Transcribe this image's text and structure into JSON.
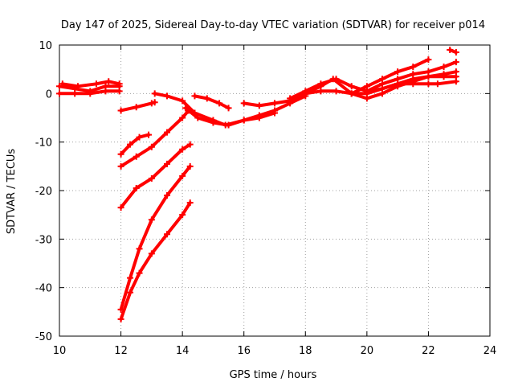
{
  "chart_data": {
    "type": "scatter",
    "title": "Day 147 of 2025, Sidereal Day-to-day VTEC variation (SDTVAR) for receiver p014",
    "xlabel": "GPS time / hours",
    "ylabel": "SDTVAR / TECUs",
    "xlim": [
      10,
      24
    ],
    "ylim": [
      -50,
      10
    ],
    "xticks": [
      10,
      12,
      14,
      16,
      18,
      20,
      22,
      24
    ],
    "yticks": [
      -50,
      -40,
      -30,
      -20,
      -10,
      0,
      10
    ],
    "xtick_labels": [
      "10",
      "12",
      "14",
      "16",
      "18",
      "20",
      "22",
      "24"
    ],
    "ytick_labels": [
      "-50",
      "-40",
      "-30",
      "-20",
      "-10",
      "0",
      "10"
    ],
    "grid": true,
    "legend": "none",
    "marker": "plus",
    "color": "#ff0000",
    "series": [
      {
        "x": [
          10.0,
          10.5,
          11.0,
          11.5,
          11.95
        ],
        "y": [
          1.5,
          1.0,
          0.5,
          1.5,
          1.5
        ]
      },
      {
        "x": [
          10.0,
          10.5,
          11.0,
          11.5,
          11.95
        ],
        "y": [
          0.0,
          0.0,
          0.0,
          0.5,
          0.5
        ]
      },
      {
        "x": [
          10.1,
          10.6,
          11.2,
          11.6,
          11.95
        ],
        "y": [
          2.0,
          1.5,
          2.0,
          2.5,
          2.0
        ]
      },
      {
        "x": [
          12.0,
          12.5,
          13.0,
          13.1
        ],
        "y": [
          -3.5,
          -2.8,
          -2.0,
          -1.8
        ]
      },
      {
        "x": [
          12.0,
          12.3,
          12.6,
          12.9
        ],
        "y": [
          -12.5,
          -10.5,
          -9.0,
          -8.5
        ]
      },
      {
        "x": [
          12.0,
          12.5,
          13.0,
          13.5,
          14.0,
          14.2
        ],
        "y": [
          -15.0,
          -13.0,
          -11.0,
          -8.0,
          -5.0,
          -3.5
        ]
      },
      {
        "x": [
          12.0,
          12.5,
          13.0,
          13.5,
          14.0,
          14.25
        ],
        "y": [
          -23.5,
          -19.5,
          -17.5,
          -14.5,
          -11.5,
          -10.5
        ]
      },
      {
        "x": [
          12.0,
          12.3,
          12.6,
          13.0,
          13.5,
          14.0,
          14.25
        ],
        "y": [
          -44.5,
          -38.0,
          -32.0,
          -26.0,
          -21.0,
          -17.0,
          -15.0
        ]
      },
      {
        "x": [
          12.0,
          12.3,
          12.6,
          13.0,
          13.5,
          14.0,
          14.25
        ],
        "y": [
          -46.5,
          -41.0,
          -37.0,
          -33.0,
          -29.0,
          -25.0,
          -22.5
        ]
      },
      {
        "x": [
          13.1,
          13.5,
          14.0,
          14.4,
          15.0,
          15.4,
          16.0,
          16.5,
          17.0
        ],
        "y": [
          0.0,
          -0.5,
          -1.5,
          -4.0,
          -5.5,
          -6.5,
          -5.5,
          -5.0,
          -4.0
        ]
      },
      {
        "x": [
          14.1,
          14.5,
          15.0,
          15.5,
          16.0,
          16.5,
          17.0,
          17.5,
          18.0
        ],
        "y": [
          -3.0,
          -5.0,
          -6.0,
          -6.5,
          -5.5,
          -4.5,
          -3.5,
          -2.0,
          -0.5
        ]
      },
      {
        "x": [
          14.4,
          14.8,
          15.2,
          15.5
        ],
        "y": [
          -0.5,
          -1.0,
          -2.0,
          -3.0
        ]
      },
      {
        "x": [
          16.0,
          16.5,
          17.0,
          17.5,
          18.0,
          18.5,
          19.0,
          19.5,
          20.0,
          20.5,
          21.0,
          21.5,
          22.0,
          22.3,
          22.9
        ],
        "y": [
          -2.0,
          -2.5,
          -2.0,
          -1.5,
          0.0,
          0.5,
          0.5,
          0.0,
          0.0,
          1.0,
          2.0,
          2.0,
          2.0,
          2.0,
          2.5
        ]
      },
      {
        "x": [
          17.5,
          18.0,
          18.5,
          19.0,
          19.5,
          20.0,
          20.5,
          21.0,
          21.5,
          22.0,
          22.5,
          22.9
        ],
        "y": [
          -1.0,
          0.5,
          2.0,
          3.0,
          1.5,
          0.5,
          1.0,
          2.0,
          3.0,
          3.5,
          3.5,
          3.5
        ]
      },
      {
        "x": [
          18.0,
          18.5,
          18.9,
          19.5,
          20.0,
          20.5,
          21.0,
          21.5,
          22.0,
          22.5,
          22.9
        ],
        "y": [
          0.0,
          1.5,
          3.0,
          0.0,
          -1.0,
          0.0,
          1.5,
          2.5,
          3.5,
          4.0,
          4.5
        ]
      },
      {
        "x": [
          19.5,
          20.0,
          20.5,
          21.0,
          21.5,
          22.0
        ],
        "y": [
          0.0,
          1.5,
          3.0,
          4.5,
          5.5,
          7.0
        ]
      },
      {
        "x": [
          20.0,
          20.5,
          21.0,
          21.5,
          22.0,
          22.5,
          22.9
        ],
        "y": [
          0.5,
          2.0,
          3.0,
          4.0,
          4.5,
          5.5,
          6.5
        ]
      },
      {
        "x": [
          22.7,
          22.9
        ],
        "y": [
          9.0,
          8.5
        ]
      }
    ]
  }
}
